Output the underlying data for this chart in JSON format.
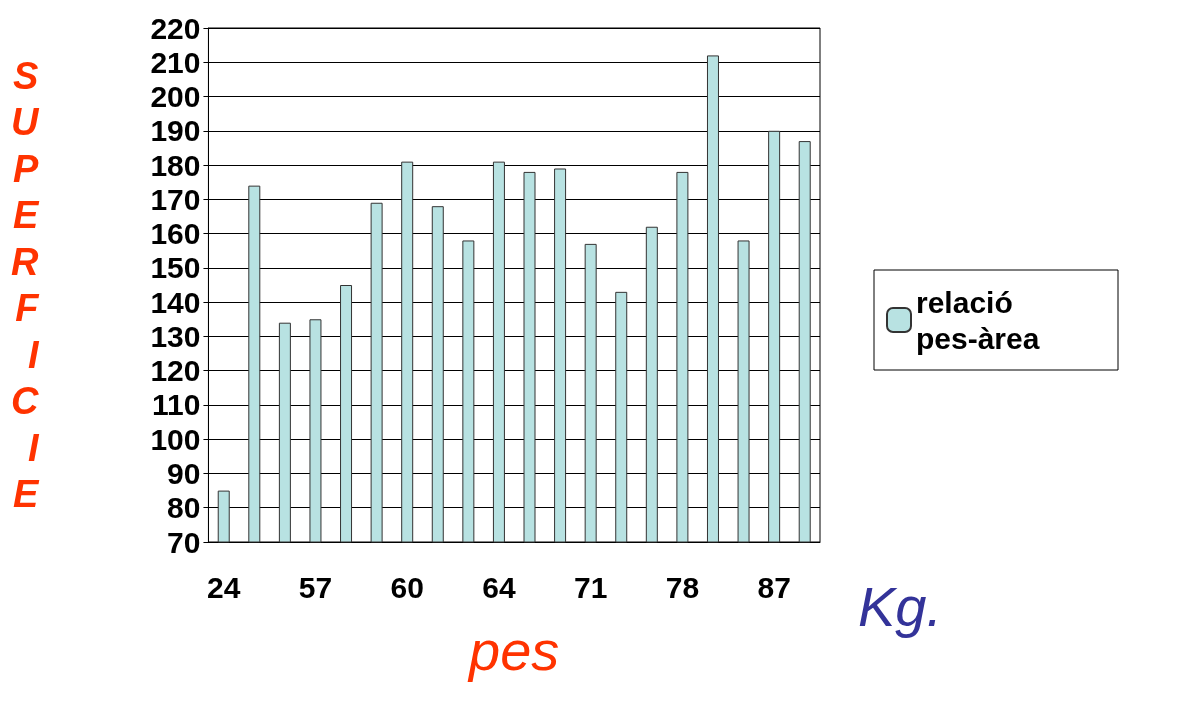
{
  "chart_data": {
    "type": "bar",
    "xlabel": "pes",
    "ylabel": "SUPERFICIE",
    "annotations": [
      "Kg."
    ],
    "categories": [
      "24",
      null,
      null,
      "57",
      null,
      null,
      "60",
      null,
      null,
      "64",
      null,
      null,
      "71",
      null,
      null,
      "78",
      null,
      null,
      "87",
      null
    ],
    "series": [
      {
        "name": "relació pes-àrea",
        "color": "#b8e2e2",
        "values": [
          85,
          174,
          134,
          135,
          145,
          169,
          181,
          168,
          158,
          181,
          178,
          179,
          157,
          143,
          162,
          178,
          212,
          158,
          190,
          187
        ]
      }
    ],
    "ylim": [
      70,
      220
    ],
    "yticks": [
      70,
      80,
      90,
      100,
      110,
      120,
      130,
      140,
      150,
      160,
      170,
      180,
      190,
      200,
      210,
      220
    ],
    "grid": "y",
    "legend": "right"
  }
}
